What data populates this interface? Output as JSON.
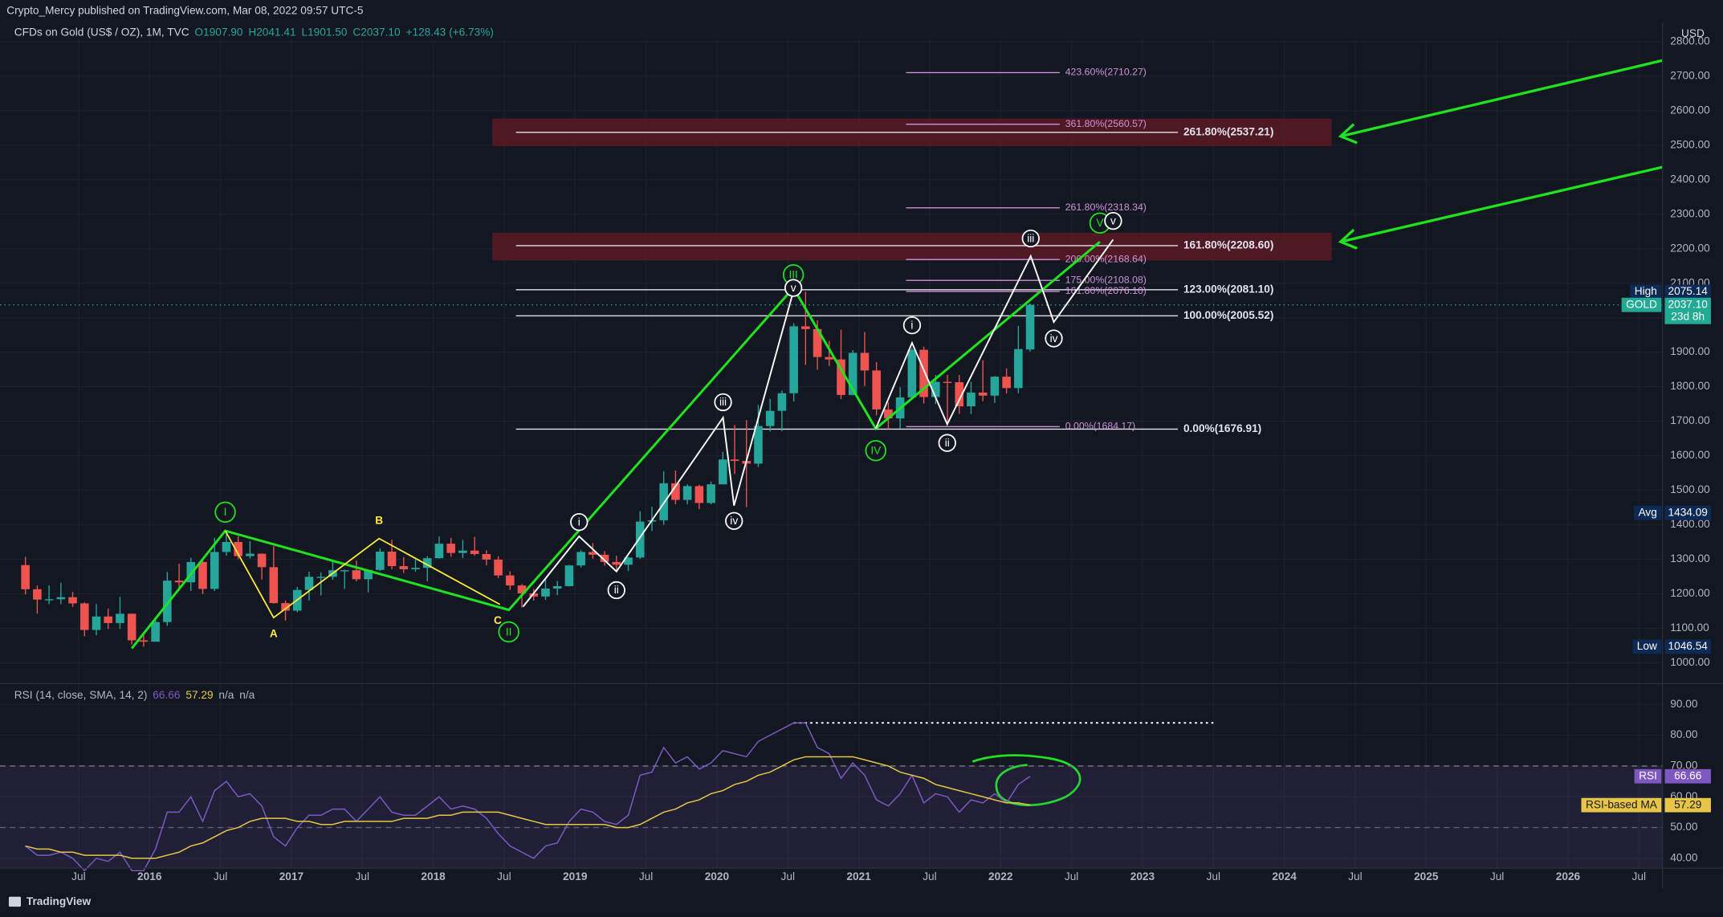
{
  "header": {
    "publisher": "Crypto_Mercy published on TradingView.com, Mar 08, 2022 09:57 UTC-5"
  },
  "footer": {
    "brand": "TradingView"
  },
  "chart_data": [
    {
      "type": "candlestick",
      "symbol": "CFDs on Gold (US$ / OZ), 1M, TVC",
      "legend_values": [
        "O1907.90",
        "H2041.41",
        "L1901.50",
        "C2037.10",
        "+128.43 (+6.73%)"
      ],
      "unit": "USD",
      "up_color": "#26a69a",
      "down_color": "#ef5350",
      "grid": true,
      "log_scale": false,
      "x": [
        "2015-02",
        "2015-03",
        "2015-04",
        "2015-05",
        "2015-06",
        "2015-07",
        "2015-08",
        "2015-09",
        "2015-10",
        "2015-11",
        "2015-12",
        "2016-01",
        "2016-02",
        "2016-03",
        "2016-04",
        "2016-05",
        "2016-06",
        "2016-07",
        "2016-08",
        "2016-09",
        "2016-10",
        "2016-11",
        "2016-12",
        "2017-01",
        "2017-02",
        "2017-03",
        "2017-04",
        "2017-05",
        "2017-06",
        "2017-07",
        "2017-08",
        "2017-09",
        "2017-10",
        "2017-11",
        "2017-12",
        "2018-01",
        "2018-02",
        "2018-03",
        "2018-04",
        "2018-05",
        "2018-06",
        "2018-07",
        "2018-08",
        "2018-09",
        "2018-10",
        "2018-11",
        "2018-12",
        "2019-01",
        "2019-02",
        "2019-03",
        "2019-04",
        "2019-05",
        "2019-06",
        "2019-07",
        "2019-08",
        "2019-09",
        "2019-10",
        "2019-11",
        "2019-12",
        "2020-01",
        "2020-02",
        "2020-03",
        "2020-04",
        "2020-05",
        "2020-06",
        "2020-07",
        "2020-08",
        "2020-09",
        "2020-10",
        "2020-11",
        "2020-12",
        "2021-01",
        "2021-02",
        "2021-03",
        "2021-04",
        "2021-05",
        "2021-06",
        "2021-07",
        "2021-08",
        "2021-09",
        "2021-10",
        "2021-11",
        "2021-12",
        "2022-01",
        "2022-02",
        "2022-03"
      ],
      "open": [
        1283,
        1213,
        1183,
        1184,
        1190,
        1172,
        1095,
        1134,
        1115,
        1142,
        1065,
        1061,
        1118,
        1238,
        1233,
        1292,
        1214,
        1321,
        1350,
        1309,
        1316,
        1277,
        1173,
        1151,
        1211,
        1249,
        1249,
        1268,
        1268,
        1242,
        1269,
        1322,
        1280,
        1271,
        1275,
        1303,
        1345,
        1318,
        1325,
        1315,
        1299,
        1253,
        1224,
        1201,
        1192,
        1215,
        1222,
        1282,
        1321,
        1313,
        1292,
        1284,
        1305,
        1409,
        1413,
        1520,
        1472,
        1512,
        1463,
        1517,
        1589,
        1585,
        1577,
        1686,
        1730,
        1781,
        1975,
        1967,
        1886,
        1879,
        1776,
        1898,
        1847,
        1734,
        1708,
        1769,
        1907,
        1770,
        1814,
        1813,
        1743,
        1783,
        1774,
        1829,
        1796,
        1907.9
      ],
      "high": [
        1307,
        1224,
        1224,
        1232,
        1205,
        1175,
        1170,
        1157,
        1191,
        1143,
        1088,
        1127,
        1263,
        1287,
        1304,
        1304,
        1362,
        1375,
        1367,
        1352,
        1317,
        1338,
        1180,
        1220,
        1264,
        1262,
        1295,
        1270,
        1296,
        1270,
        1331,
        1357,
        1306,
        1299,
        1309,
        1366,
        1362,
        1356,
        1365,
        1326,
        1309,
        1265,
        1228,
        1214,
        1243,
        1237,
        1284,
        1326,
        1347,
        1324,
        1310,
        1306,
        1439,
        1452,
        1555,
        1557,
        1517,
        1516,
        1525,
        1611,
        1689,
        1703,
        1747,
        1765,
        1789,
        1984,
        2075.14,
        1992,
        1933,
        1965,
        1906,
        1959,
        1871,
        1755,
        1798,
        1913,
        1916,
        1834,
        1834,
        1834,
        1814,
        1877,
        1831,
        1853,
        1976,
        2041.41
      ],
      "low": [
        1198,
        1142,
        1170,
        1170,
        1162,
        1077,
        1080,
        1098,
        1098,
        1053,
        1046.54,
        1061,
        1107,
        1208,
        1208,
        1199,
        1208,
        1310,
        1300,
        1302,
        1241,
        1171,
        1122,
        1146,
        1180,
        1195,
        1240,
        1214,
        1236,
        1204,
        1266,
        1271,
        1260,
        1264,
        1236,
        1302,
        1307,
        1303,
        1310,
        1282,
        1245,
        1211,
        1160,
        1180,
        1182,
        1196,
        1221,
        1276,
        1302,
        1281,
        1266,
        1266,
        1301,
        1382,
        1400,
        1459,
        1459,
        1445,
        1459,
        1517,
        1547,
        1451,
        1567,
        1670,
        1671,
        1757,
        1863,
        1849,
        1860,
        1764,
        1775,
        1802,
        1717,
        1677,
        1678,
        1766,
        1751,
        1750,
        1688,
        1721,
        1721,
        1758,
        1753,
        1780,
        1781,
        1901.5
      ],
      "close": [
        1213,
        1183,
        1184,
        1190,
        1172,
        1095,
        1134,
        1115,
        1142,
        1065,
        1061,
        1118,
        1238,
        1233,
        1292,
        1214,
        1321,
        1350,
        1309,
        1316,
        1277,
        1173,
        1151,
        1211,
        1249,
        1249,
        1268,
        1268,
        1242,
        1269,
        1322,
        1280,
        1271,
        1275,
        1303,
        1345,
        1318,
        1325,
        1315,
        1299,
        1253,
        1224,
        1201,
        1192,
        1215,
        1222,
        1282,
        1321,
        1313,
        1292,
        1284,
        1305,
        1409,
        1413,
        1520,
        1472,
        1512,
        1463,
        1517,
        1589,
        1585,
        1577,
        1686,
        1730,
        1781,
        1975,
        1967,
        1886,
        1879,
        1776,
        1898,
        1847,
        1734,
        1708,
        1769,
        1907,
        1770,
        1814,
        1813,
        1743,
        1783,
        1774,
        1829,
        1796,
        1909,
        2037.1
      ],
      "xlim": [
        "2015-01",
        "2026-09"
      ],
      "xticks": [
        {
          "value": "2015-07",
          "label": "Jul"
        },
        {
          "value": "2016-01",
          "label": "2016"
        },
        {
          "value": "2016-07",
          "label": "Jul"
        },
        {
          "value": "2017-01",
          "label": "2017"
        },
        {
          "value": "2017-07",
          "label": "Jul"
        },
        {
          "value": "2018-01",
          "label": "2018"
        },
        {
          "value": "2018-07",
          "label": "Jul"
        },
        {
          "value": "2019-01",
          "label": "2019"
        },
        {
          "value": "2019-07",
          "label": "Jul"
        },
        {
          "value": "2020-01",
          "label": "2020"
        },
        {
          "value": "2020-07",
          "label": "Jul"
        },
        {
          "value": "2021-01",
          "label": "2021"
        },
        {
          "value": "2021-07",
          "label": "Jul"
        },
        {
          "value": "2022-01",
          "label": "2022"
        },
        {
          "value": "2022-07",
          "label": "Jul"
        },
        {
          "value": "2023-01",
          "label": "2023"
        },
        {
          "value": "2023-07",
          "label": "Jul"
        },
        {
          "value": "2024-01",
          "label": "2024"
        },
        {
          "value": "2024-07",
          "label": "Jul"
        },
        {
          "value": "2025-01",
          "label": "2025"
        },
        {
          "value": "2025-07",
          "label": "Jul"
        },
        {
          "value": "2026-01",
          "label": "2026"
        },
        {
          "value": "2026-07",
          "label": "Jul"
        }
      ],
      "ylim": [
        946,
        2806
      ],
      "yticks": [
        {
          "value": 1000,
          "label": "1000.00"
        },
        {
          "value": 1100,
          "label": "1100.00"
        },
        {
          "value": 1200,
          "label": "1200.00"
        },
        {
          "value": 1300,
          "label": "1300.00"
        },
        {
          "value": 1400,
          "label": "1400.00"
        },
        {
          "value": 1500,
          "label": "1500.00"
        },
        {
          "value": 1600,
          "label": "1600.00"
        },
        {
          "value": 1700,
          "label": "1700.00"
        },
        {
          "value": 1800,
          "label": "1800.00"
        },
        {
          "value": 1900,
          "label": "1900.00"
        },
        {
          "value": 2000,
          "label": "2000.00"
        },
        {
          "value": 2100,
          "label": "2100.00"
        },
        {
          "value": 2200,
          "label": "2200.00"
        },
        {
          "value": 2300,
          "label": "2300.00"
        },
        {
          "value": 2400,
          "label": "2400.00"
        },
        {
          "value": 2500,
          "label": "2500.00"
        },
        {
          "value": 2600,
          "label": "2600.00"
        },
        {
          "value": 2700,
          "label": "2700.00"
        },
        {
          "value": 2800,
          "label": "2800.00"
        }
      ],
      "zones": [
        {
          "from": 2497,
          "to": 2577,
          "start": "2018-06",
          "end": "2024-05",
          "color": "#5a1a24"
        },
        {
          "from": 2166,
          "to": 2246,
          "start": "2018-06",
          "end": "2024-05",
          "color": "#5a1a24"
        }
      ],
      "fib_sets": [
        {
          "color": "#e0e3eb",
          "start": "2018-08",
          "end": "2023-04",
          "levels": [
            {
              "value": 2537.21,
              "label": "261.80%(2537.21)"
            },
            {
              "value": 2208.6,
              "label": "161.80%(2208.60)"
            },
            {
              "value": 2081.1,
              "label": "123.00%(2081.10)"
            },
            {
              "value": 2005.52,
              "label": "100.00%(2005.52)"
            },
            {
              "value": 1676.91,
              "label": "0.00%(1676.91)"
            }
          ]
        },
        {
          "color": "#ce93d8",
          "start": "2021-05",
          "end": "2022-06",
          "levels": [
            {
              "value": 2710.27,
              "label": "423.60%(2710.27)"
            },
            {
              "value": 2560.57,
              "label": "361.80%(2560.57)"
            },
            {
              "value": 2318.34,
              "label": "261.80%(2318.34)"
            },
            {
              "value": 2168.64,
              "label": "200.00%(2168.64)"
            },
            {
              "value": 2108.08,
              "label": "175.00%(2108.08)"
            },
            {
              "value": 2076.1,
              "label": "161.80%(2076.10)"
            },
            {
              "value": 1684.17,
              "label": "0.00%(1684.17)"
            }
          ]
        }
      ],
      "wave_labels": {
        "primary": [
          "I",
          "II",
          "III",
          "IV",
          "V"
        ],
        "corrective": [
          "A",
          "B",
          "C"
        ],
        "minor_a": [
          "i",
          "ii",
          "iii",
          "iv",
          "v"
        ],
        "minor_b": [
          "i",
          "ii",
          "iii",
          "iv",
          "v"
        ]
      },
      "badges": [
        {
          "name": "High",
          "value": 2075.14,
          "color": "#0d2a56"
        },
        {
          "name": "GOLD",
          "value": 2037.1,
          "label": "2037.10",
          "countdown": "23d 8h",
          "color": "#22ab94"
        },
        {
          "name": "Avg",
          "value": 1434.09,
          "color": "#0d2a56"
        },
        {
          "name": "Low",
          "value": 1046.54,
          "color": "#0d2a56"
        }
      ]
    },
    {
      "type": "line",
      "title": "RSI (14, close, SMA, 14, 2)",
      "legend_extra": [
        "n/a",
        "n/a"
      ],
      "series": [
        {
          "name": "RSI",
          "color": "#7e57c2",
          "values": [
            44,
            41,
            41,
            42,
            40,
            36,
            40,
            39,
            42,
            36,
            36,
            43,
            55,
            55,
            60,
            52,
            62,
            65,
            60,
            61,
            57,
            47,
            44,
            50,
            54,
            54,
            56,
            56,
            52,
            56,
            60,
            55,
            54,
            54,
            57,
            60,
            56,
            57,
            56,
            53,
            48,
            44,
            42,
            40,
            44,
            45,
            52,
            56,
            55,
            52,
            51,
            54,
            67,
            68,
            76,
            71,
            73,
            69,
            71,
            75,
            74,
            73,
            78,
            80,
            82,
            84,
            84,
            76,
            74,
            66,
            71,
            67,
            59,
            57,
            61,
            67,
            58,
            61,
            60,
            55,
            59,
            58,
            61,
            58,
            64,
            66.66
          ]
        },
        {
          "name": "RSI-based MA",
          "color": "#e8c547",
          "values": [
            44,
            43,
            43,
            42,
            42,
            41,
            41,
            41,
            41,
            40,
            40,
            40,
            41,
            42,
            44,
            45,
            47,
            49,
            50,
            52,
            53,
            53,
            53,
            52,
            52,
            51,
            51,
            52,
            52,
            52,
            52,
            52,
            53,
            53,
            53,
            54,
            54,
            55,
            55,
            55,
            55,
            54,
            53,
            52,
            51,
            51,
            51,
            51,
            51,
            51,
            50,
            50,
            51,
            53,
            55,
            56,
            58,
            59,
            61,
            62,
            64,
            65,
            67,
            68,
            70,
            72,
            73,
            73,
            73,
            73,
            73,
            72,
            71,
            70,
            68,
            67,
            66,
            64,
            63,
            62,
            61,
            60,
            59,
            58,
            58,
            57.29
          ]
        }
      ],
      "ylim": [
        36.8,
        95.7
      ],
      "yticks": [
        {
          "value": 40,
          "label": "40.00"
        },
        {
          "value": 50,
          "label": "50.00"
        },
        {
          "value": 60,
          "label": "60.00"
        },
        {
          "value": 70,
          "label": "70.00"
        },
        {
          "value": 80,
          "label": "80.00"
        },
        {
          "value": 90,
          "label": "90.00"
        }
      ],
      "band": [
        30,
        70
      ],
      "mid_level": 50,
      "peak_line": {
        "value": 84,
        "start": "2020-07",
        "end": "2023-07"
      }
    }
  ]
}
